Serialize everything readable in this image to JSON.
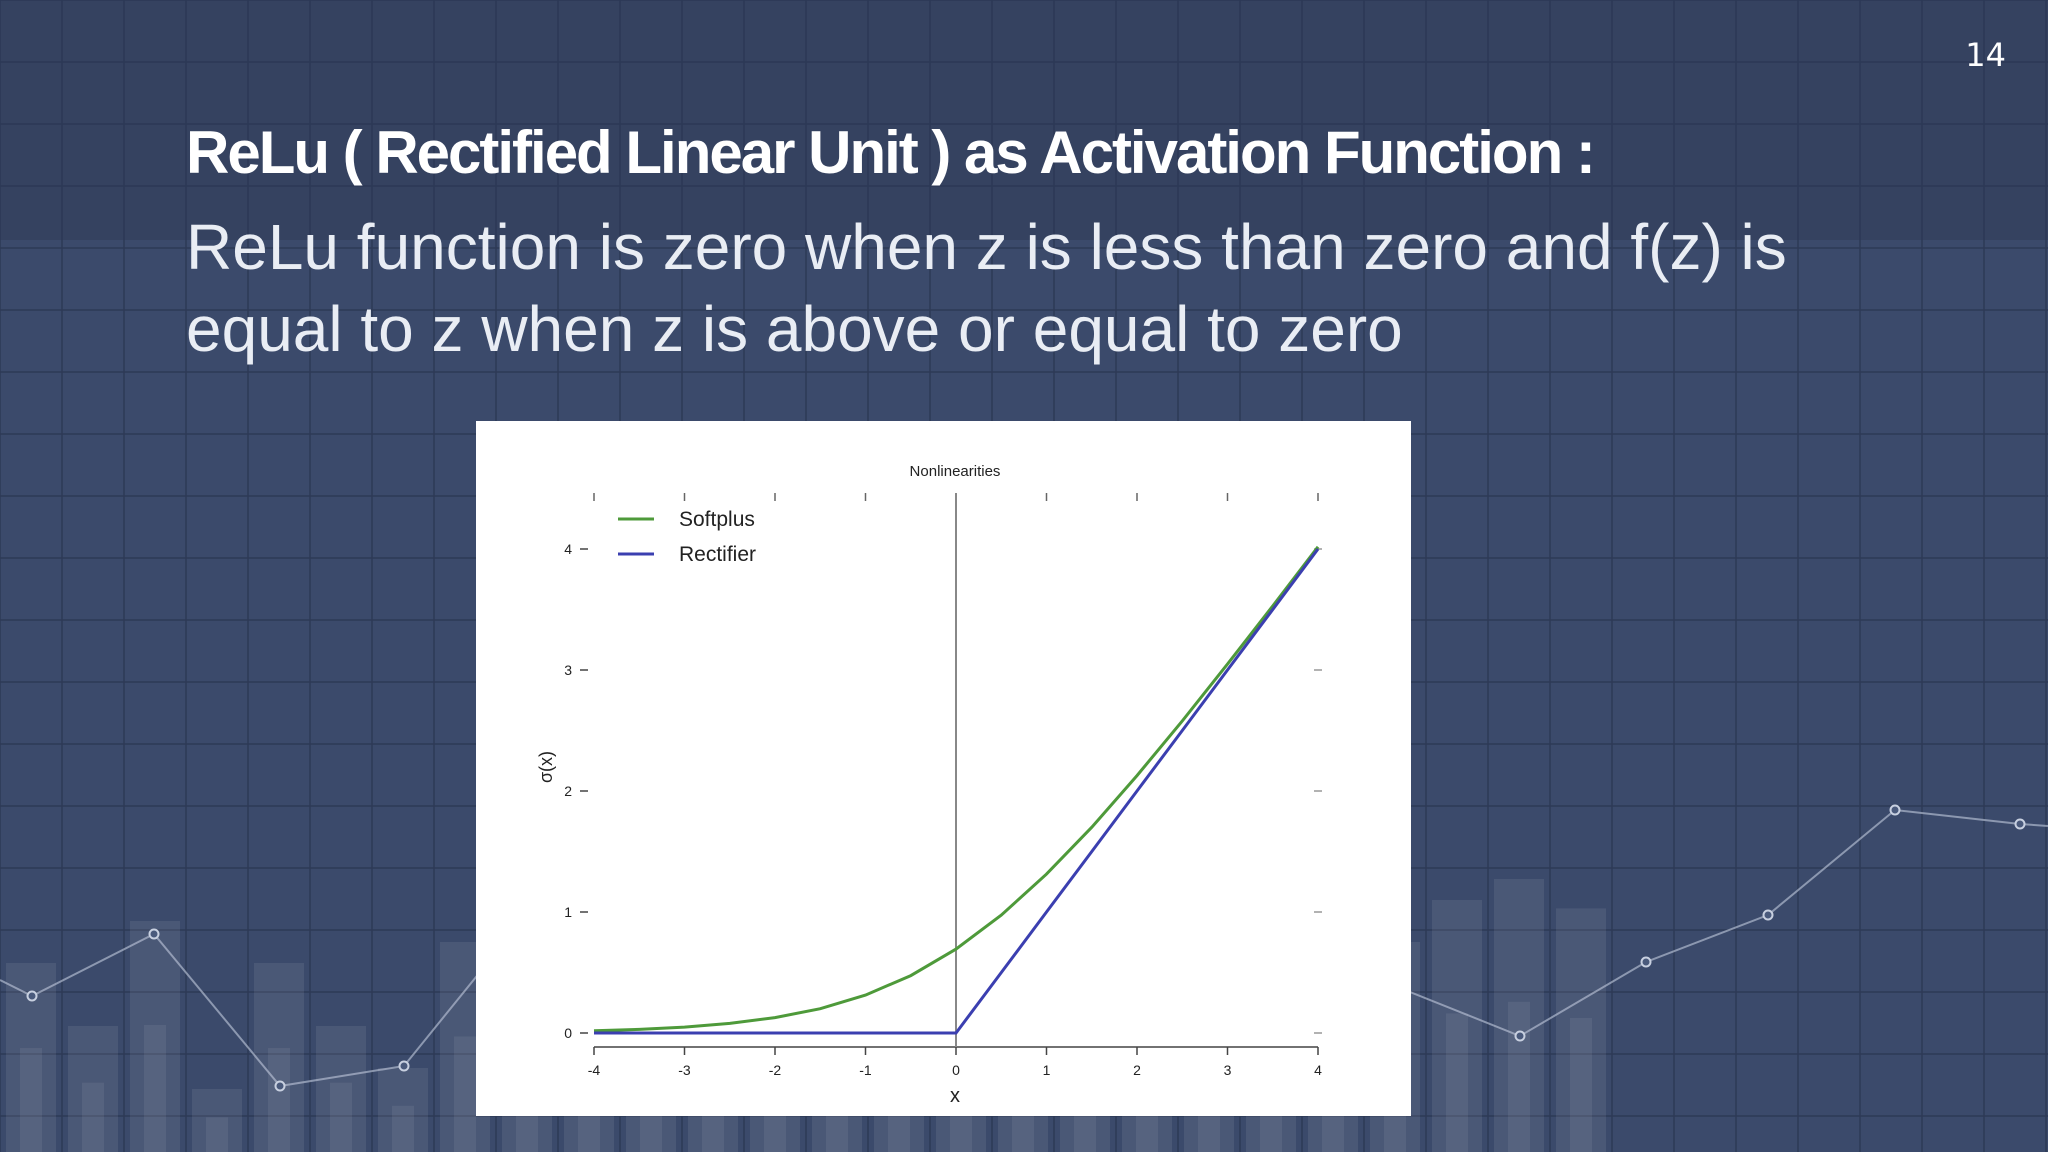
{
  "slide": {
    "page_number": "14",
    "title": "ReLu ( Rectified Linear Unit ) as Activation Function :",
    "body": "ReLu function is zero when z is less than zero and f(z) is equal to z when z is above or equal to zero"
  },
  "colors": {
    "background": "#3a4a6c",
    "softplus": "#4e9a3a",
    "rectifier": "#3b3fb0"
  },
  "chart_data": {
    "type": "line",
    "title": "Nonlinearities",
    "xlabel": "x",
    "ylabel": "σ(x)",
    "xlim": [
      -4,
      4
    ],
    "ylim": [
      0,
      4
    ],
    "xticks": [
      "-4",
      "-3",
      "-2",
      "-1",
      "0",
      "1",
      "2",
      "3",
      "4"
    ],
    "yticks": [
      "0",
      "1",
      "2",
      "3",
      "4"
    ],
    "legend_position": "top-left",
    "grid": false,
    "x": [
      -4,
      -3.5,
      -3,
      -2.5,
      -2,
      -1.5,
      -1,
      -0.5,
      0,
      0.5,
      1,
      1.5,
      2,
      2.5,
      3,
      3.5,
      4
    ],
    "series": [
      {
        "name": "Softplus",
        "color": "#4e9a3a",
        "values": [
          0.018,
          0.03,
          0.049,
          0.079,
          0.127,
          0.201,
          0.313,
          0.474,
          0.693,
          0.974,
          1.313,
          1.701,
          2.127,
          2.579,
          3.049,
          3.53,
          4.018
        ]
      },
      {
        "name": "Rectifier",
        "color": "#3b3fb0",
        "values": [
          0,
          0,
          0,
          0,
          0,
          0,
          0,
          0,
          0,
          0.5,
          1,
          1.5,
          2,
          2.5,
          3,
          3.5,
          4
        ]
      }
    ]
  }
}
